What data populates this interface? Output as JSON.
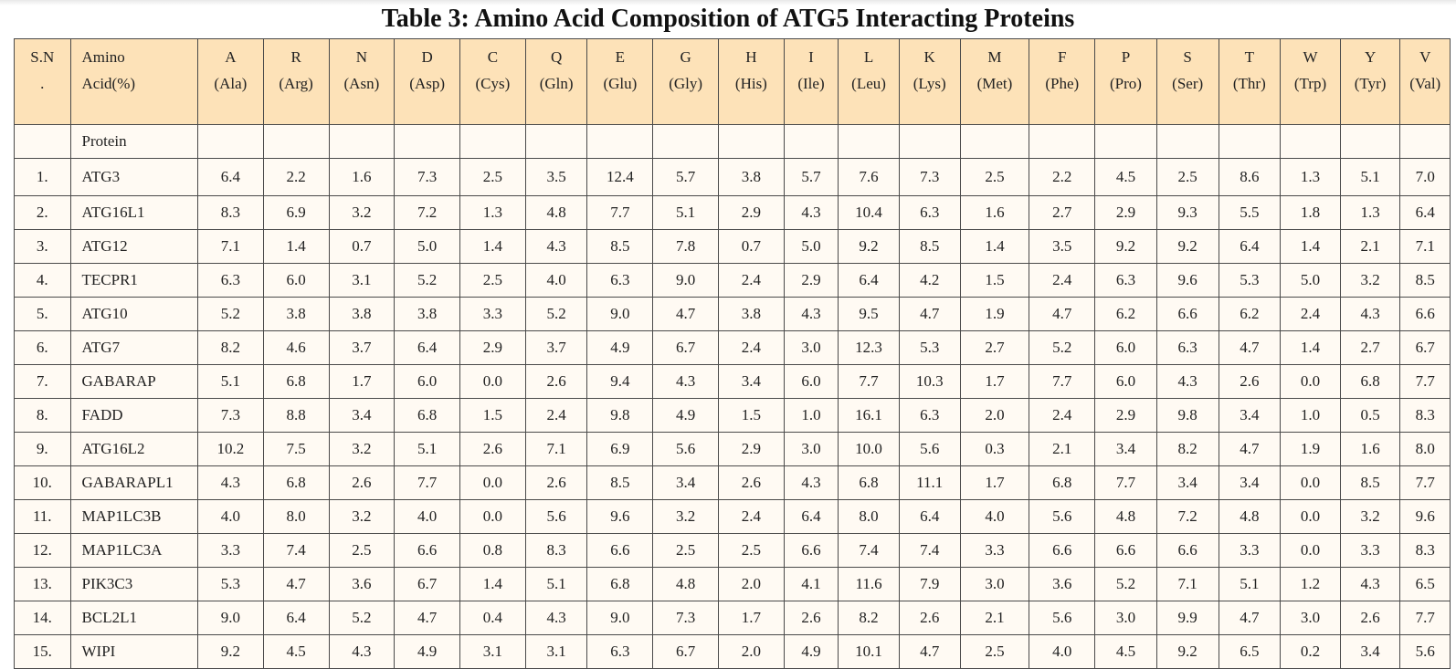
{
  "title": "Table 3: Amino Acid Composition of ATG5 Interacting Proteins",
  "header": {
    "sn_line1": "S.N",
    "sn_line2": ".",
    "amino_line1": "Amino",
    "amino_line2": "Acid(%)",
    "protein_label": "Protein",
    "columns": [
      {
        "code": "A",
        "name": "(Ala)"
      },
      {
        "code": "R",
        "name": "(Arg)"
      },
      {
        "code": "N",
        "name": "(Asn)"
      },
      {
        "code": "D",
        "name": "(Asp)"
      },
      {
        "code": "C",
        "name": "(Cys)"
      },
      {
        "code": "Q",
        "name": "(Gln)"
      },
      {
        "code": "E",
        "name": "(Glu)"
      },
      {
        "code": "G",
        "name": "(Gly)"
      },
      {
        "code": "H",
        "name": "(His)"
      },
      {
        "code": "I",
        "name": "(Ile)"
      },
      {
        "code": "L",
        "name": "(Leu)"
      },
      {
        "code": "K",
        "name": "(Lys)"
      },
      {
        "code": "M",
        "name": "(Met)"
      },
      {
        "code": "F",
        "name": "(Phe)"
      },
      {
        "code": "P",
        "name": "(Pro)"
      },
      {
        "code": "S",
        "name": "(Ser)"
      },
      {
        "code": "T",
        "name": "(Thr)"
      },
      {
        "code": "W",
        "name": "(Trp)"
      },
      {
        "code": "Y",
        "name": "(Tyr)"
      },
      {
        "code": "V",
        "name": "(Val)"
      }
    ]
  },
  "rows": [
    {
      "sn": "1.",
      "protein": "ATG3",
      "values": [
        "6.4",
        "2.2",
        "1.6",
        "7.3",
        "2.5",
        "3.5",
        "12.4",
        "5.7",
        "3.8",
        "5.7",
        "7.6",
        "7.3",
        "2.5",
        "2.2",
        "4.5",
        "2.5",
        "8.6",
        "1.3",
        "5.1",
        "7.0"
      ]
    },
    {
      "sn": "2.",
      "protein": "ATG16L1",
      "values": [
        "8.3",
        "6.9",
        "3.2",
        "7.2",
        "1.3",
        "4.8",
        "7.7",
        "5.1",
        "2.9",
        "4.3",
        "10.4",
        "6.3",
        "1.6",
        "2.7",
        "2.9",
        "9.3",
        "5.5",
        "1.8",
        "1.3",
        "6.4"
      ]
    },
    {
      "sn": "3.",
      "protein": "ATG12",
      "values": [
        "7.1",
        "1.4",
        "0.7",
        "5.0",
        "1.4",
        "4.3",
        "8.5",
        "7.8",
        "0.7",
        "5.0",
        "9.2",
        "8.5",
        "1.4",
        "3.5",
        "9.2",
        "9.2",
        "6.4",
        "1.4",
        "2.1",
        "7.1"
      ]
    },
    {
      "sn": "4.",
      "protein": "TECPR1",
      "values": [
        "6.3",
        "6.0",
        "3.1",
        "5.2",
        "2.5",
        "4.0",
        "6.3",
        "9.0",
        "2.4",
        "2.9",
        "6.4",
        "4.2",
        "1.5",
        "2.4",
        "6.3",
        "9.6",
        "5.3",
        "5.0",
        "3.2",
        "8.5"
      ]
    },
    {
      "sn": "5.",
      "protein": "ATG10",
      "values": [
        "5.2",
        "3.8",
        "3.8",
        "3.8",
        "3.3",
        "5.2",
        "9.0",
        "4.7",
        "3.8",
        "4.3",
        "9.5",
        "4.7",
        "1.9",
        "4.7",
        "6.2",
        "6.6",
        "6.2",
        "2.4",
        "4.3",
        "6.6"
      ]
    },
    {
      "sn": "6.",
      "protein": "ATG7",
      "values": [
        "8.2",
        "4.6",
        "3.7",
        "6.4",
        "2.9",
        "3.7",
        "4.9",
        "6.7",
        "2.4",
        "3.0",
        "12.3",
        "5.3",
        "2.7",
        "5.2",
        "6.0",
        "6.3",
        "4.7",
        "1.4",
        "2.7",
        "6.7"
      ]
    },
    {
      "sn": "7.",
      "protein": "GABARAP",
      "values": [
        "5.1",
        "6.8",
        "1.7",
        "6.0",
        "0.0",
        "2.6",
        "9.4",
        "4.3",
        "3.4",
        "6.0",
        "7.7",
        "10.3",
        "1.7",
        "7.7",
        "6.0",
        "4.3",
        "2.6",
        "0.0",
        "6.8",
        "7.7"
      ]
    },
    {
      "sn": "8.",
      "protein": "FADD",
      "values": [
        "7.3",
        "8.8",
        "3.4",
        "6.8",
        "1.5",
        "2.4",
        "9.8",
        "4.9",
        "1.5",
        "1.0",
        "16.1",
        "6.3",
        "2.0",
        "2.4",
        "2.9",
        "9.8",
        "3.4",
        "1.0",
        "0.5",
        "8.3"
      ]
    },
    {
      "sn": "9.",
      "protein": "ATG16L2",
      "values": [
        "10.2",
        "7.5",
        "3.2",
        "5.1",
        "2.6",
        "7.1",
        "6.9",
        "5.6",
        "2.9",
        "3.0",
        "10.0",
        "5.6",
        "0.3",
        "2.1",
        "3.4",
        "8.2",
        "4.7",
        "1.9",
        "1.6",
        "8.0"
      ]
    },
    {
      "sn": "10.",
      "protein": "GABARAPL1",
      "values": [
        "4.3",
        "6.8",
        "2.6",
        "7.7",
        "0.0",
        "2.6",
        "8.5",
        "3.4",
        "2.6",
        "4.3",
        "6.8",
        "11.1",
        "1.7",
        "6.8",
        "7.7",
        "3.4",
        "3.4",
        "0.0",
        "8.5",
        "7.7"
      ]
    },
    {
      "sn": "11.",
      "protein": "MAP1LC3B",
      "values": [
        "4.0",
        "8.0",
        "3.2",
        "4.0",
        "0.0",
        "5.6",
        "9.6",
        "3.2",
        "2.4",
        "6.4",
        "8.0",
        "6.4",
        "4.0",
        "5.6",
        "4.8",
        "7.2",
        "4.8",
        "0.0",
        "3.2",
        "9.6"
      ]
    },
    {
      "sn": "12.",
      "protein": "MAP1LC3A",
      "values": [
        "3.3",
        "7.4",
        "2.5",
        "6.6",
        "0.8",
        "8.3",
        "6.6",
        "2.5",
        "2.5",
        "6.6",
        "7.4",
        "7.4",
        "3.3",
        "6.6",
        "6.6",
        "6.6",
        "3.3",
        "0.0",
        "3.3",
        "8.3"
      ]
    },
    {
      "sn": "13.",
      "protein": "PIK3C3",
      "values": [
        "5.3",
        "4.7",
        "3.6",
        "6.7",
        "1.4",
        "5.1",
        "6.8",
        "4.8",
        "2.0",
        "4.1",
        "11.6",
        "7.9",
        "3.0",
        "3.6",
        "5.2",
        "7.1",
        "5.1",
        "1.2",
        "4.3",
        "6.5"
      ]
    },
    {
      "sn": "14.",
      "protein": "BCL2L1",
      "values": [
        "9.0",
        "6.4",
        "5.2",
        "4.7",
        "0.4",
        "4.3",
        "9.0",
        "7.3",
        "1.7",
        "2.6",
        "8.2",
        "2.6",
        "2.1",
        "5.6",
        "3.0",
        "9.9",
        "4.7",
        "3.0",
        "2.6",
        "7.7"
      ]
    },
    {
      "sn": "15.",
      "protein": "WIPI",
      "values": [
        "9.2",
        "4.5",
        "4.3",
        "4.9",
        "3.1",
        "3.1",
        "6.3",
        "6.7",
        "2.0",
        "4.9",
        "10.1",
        "4.7",
        "2.5",
        "4.0",
        "4.5",
        "9.2",
        "6.5",
        "0.2",
        "3.4",
        "5.6"
      ]
    }
  ]
}
